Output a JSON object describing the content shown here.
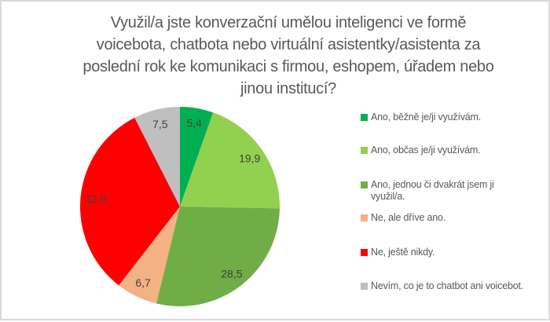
{
  "header": {
    "title_lines": "Využil/a jste konverzační umělou inteligenci ve formě\nvoicebota, chatbota nebo virtuální asistentky/asistenta za\nposlední rok ke komunikaci s firmou, eshopem, úřadem nebo\njinou institucí?",
    "title_color": "#595959"
  },
  "chart_data": {
    "type": "pie",
    "title": "Využil/a jste konverzační umělou inteligenci ve formě voicebota, chatbota nebo virtuální asistentky/asistenta za poslední rok ke komunikaci s firmou, eshopem, úřadem nebo jinou institucí?",
    "unit": "%",
    "decimal_separator": ",",
    "start_angle_deg": 0,
    "direction": "clockwise",
    "legend_position": "right",
    "data_label_color": "#404040",
    "legend_text_color": "#595959",
    "background_color": "#ffffff",
    "frame_border_color": "#d9d9d9",
    "slices": [
      {
        "label": "Ano, běžně je/ji využívám.",
        "legend_label": "Ano, běžně je/ji využívám.",
        "value": 5.4,
        "display": "5,4",
        "color": "#00B050"
      },
      {
        "label": "Ano, občas je/ji využívám.",
        "legend_label": "Ano, občas je/ji využívám.",
        "value": 19.9,
        "display": "19,9",
        "color": "#92D050"
      },
      {
        "label": "Ano, jednou či dvakrát jsem ji využil/a.",
        "legend_label": "Ano, jednou či dvakrát jsem ji\nvyužil/a.",
        "value": 28.5,
        "display": "28,5",
        "color": "#70AD47"
      },
      {
        "label": "Ne, ale dříve ano.",
        "legend_label": "Ne, ale dříve ano.",
        "value": 6.7,
        "display": "6,7",
        "color": "#F4B183"
      },
      {
        "label": "Ne, ještě nikdy.",
        "legend_label": "Ne, ještě nikdy.",
        "value": 32.0,
        "display": "32,0",
        "color": "#FF0000"
      },
      {
        "label": "Nevím, co je to chatbot ani voicebot.",
        "legend_label": "Nevím, co je to chatbot ani voicebot.",
        "value": 7.5,
        "display": "7,5",
        "color": "#BFBFBF"
      }
    ]
  }
}
